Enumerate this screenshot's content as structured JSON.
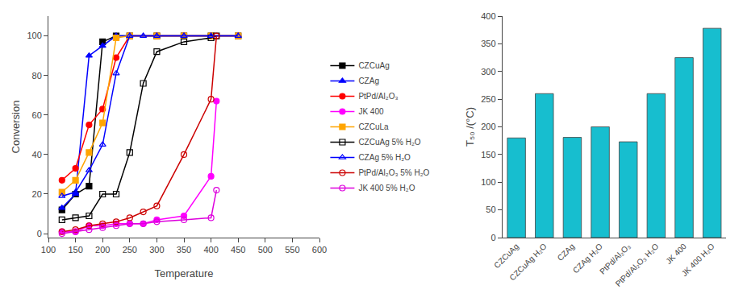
{
  "chart_data": [
    {
      "type": "line",
      "x_label": "Temperature",
      "y_label": "Conversion",
      "xlim": [
        100,
        600
      ],
      "ylim": [
        -2,
        110
      ],
      "xticks": [
        100,
        150,
        200,
        250,
        300,
        350,
        400,
        450,
        500,
        550,
        600
      ],
      "yticks": [
        0,
        20,
        40,
        60,
        80,
        100
      ],
      "grid": false,
      "legend": "right",
      "series": [
        {
          "name": "CZCuAg",
          "color": "black",
          "marker": "square",
          "line_style": "solid",
          "x": [
            125,
            150,
            175,
            200,
            225,
            250,
            300,
            350,
            400,
            450
          ],
          "values": [
            12,
            20,
            24,
            97,
            100,
            100,
            100,
            100,
            100,
            100
          ]
        },
        {
          "name": "CZAg",
          "color": "blue",
          "marker": "triangle-up",
          "line_style": "solid",
          "x": [
            125,
            150,
            175,
            200,
            225,
            250,
            300,
            350,
            400,
            450
          ],
          "values": [
            13,
            20,
            90,
            95,
            100,
            100,
            100,
            100,
            100,
            100
          ]
        },
        {
          "name": "PtPd/Al₂O₃",
          "color": "red",
          "marker": "circle",
          "line_style": "solid",
          "x": [
            125,
            150,
            175,
            200,
            225,
            250,
            300,
            350,
            400,
            450
          ],
          "values": [
            27,
            33,
            55,
            63,
            89,
            100,
            100,
            100,
            100,
            100
          ]
        },
        {
          "name": "JK 400",
          "color": "#ff00ff",
          "marker": "circle",
          "line_style": "solid",
          "x": [
            125,
            150,
            175,
            200,
            225,
            250,
            275,
            300,
            350,
            400,
            410
          ],
          "values": [
            1,
            1,
            4,
            4,
            5,
            5,
            5,
            7,
            9,
            29,
            67
          ]
        },
        {
          "name": "CZCuLa",
          "color": "orange",
          "marker": "square",
          "line_style": "solid",
          "x": [
            125,
            150,
            175,
            200,
            225,
            250,
            300,
            350,
            400,
            450
          ],
          "values": [
            21,
            27,
            41,
            56,
            99,
            100,
            100,
            100,
            100,
            100
          ]
        },
        {
          "name": "CZCuAg 5% H₂O",
          "color": "black",
          "marker": "square-open",
          "line_style": "solid",
          "x": [
            125,
            150,
            175,
            200,
            225,
            250,
            275,
            300,
            350,
            400,
            410
          ],
          "values": [
            7,
            8,
            9,
            20,
            20,
            41,
            76,
            92,
            97,
            99,
            100
          ]
        },
        {
          "name": "CZAg 5% H₂O",
          "color": "blue",
          "marker": "triangle-up-open",
          "line_style": "solid",
          "x": [
            125,
            150,
            175,
            200,
            225,
            250,
            275,
            300,
            350,
            400,
            450
          ],
          "values": [
            19,
            21,
            32,
            45,
            81,
            100,
            100,
            100,
            100,
            100,
            100
          ]
        },
        {
          "name": "PtPd/Al₂O₃ 5% H₂O",
          "color": "#cc0000",
          "marker": "circle-open",
          "line_style": "solid",
          "x": [
            125,
            150,
            175,
            200,
            225,
            250,
            275,
            300,
            350,
            400,
            410
          ],
          "values": [
            1,
            2,
            4,
            5,
            6,
            8,
            11,
            14,
            40,
            68,
            100
          ]
        },
        {
          "name": "JK 400 5% H₂O",
          "color": "#dd00dd",
          "marker": "circle-open",
          "line_style": "solid",
          "x": [
            125,
            150,
            175,
            200,
            225,
            250,
            275,
            300,
            350,
            400,
            410
          ],
          "values": [
            0,
            1,
            2,
            3,
            4,
            5,
            5,
            6,
            7,
            8,
            22
          ]
        }
      ]
    },
    {
      "type": "bar",
      "y_label": "T₅₀ /(°C)",
      "ylim": [
        0,
        400
      ],
      "yticks": [
        0,
        50,
        100,
        150,
        200,
        250,
        300,
        350,
        400
      ],
      "grid": false,
      "categories": [
        "CZCuAg",
        "CZCuAg H₂O",
        "CZAg",
        "CZAg H₂O",
        "PtPd/Al₂O₃",
        "PtPd/Al₂O₃ H₂O",
        "JK 400",
        "JK 400 H₂O"
      ],
      "values": [
        180,
        260,
        181,
        200,
        173,
        260,
        325,
        378
      ]
    }
  ]
}
